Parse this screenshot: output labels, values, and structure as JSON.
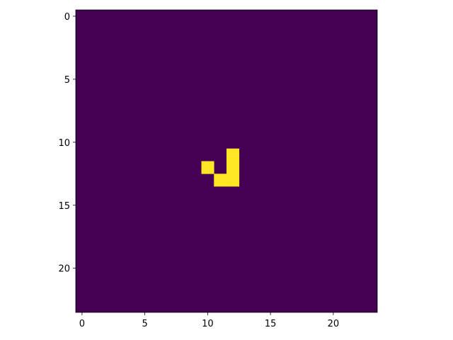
{
  "chart_data": {
    "type": "heatmap",
    "colormap": "viridis",
    "colors": {
      "low": "#440154",
      "high": "#fde725"
    },
    "grid": false,
    "rows": 24,
    "cols": 24,
    "xlim": [
      -0.5,
      23.5
    ],
    "ylim": [
      23.5,
      -0.5
    ],
    "xticks": [
      0,
      5,
      10,
      15,
      20
    ],
    "yticks": [
      0,
      5,
      10,
      15,
      20
    ],
    "xtick_labels": [
      "0",
      "5",
      "10",
      "15",
      "20"
    ],
    "ytick_labels": [
      "0",
      "5",
      "10",
      "15",
      "20"
    ],
    "background_value": 0,
    "cells": [
      {
        "row": 11,
        "col": 12,
        "value": 1
      },
      {
        "row": 12,
        "col": 10,
        "value": 1
      },
      {
        "row": 12,
        "col": 12,
        "value": 1
      },
      {
        "row": 13,
        "col": 11,
        "value": 1
      },
      {
        "row": 13,
        "col": 12,
        "value": 1
      }
    ]
  }
}
